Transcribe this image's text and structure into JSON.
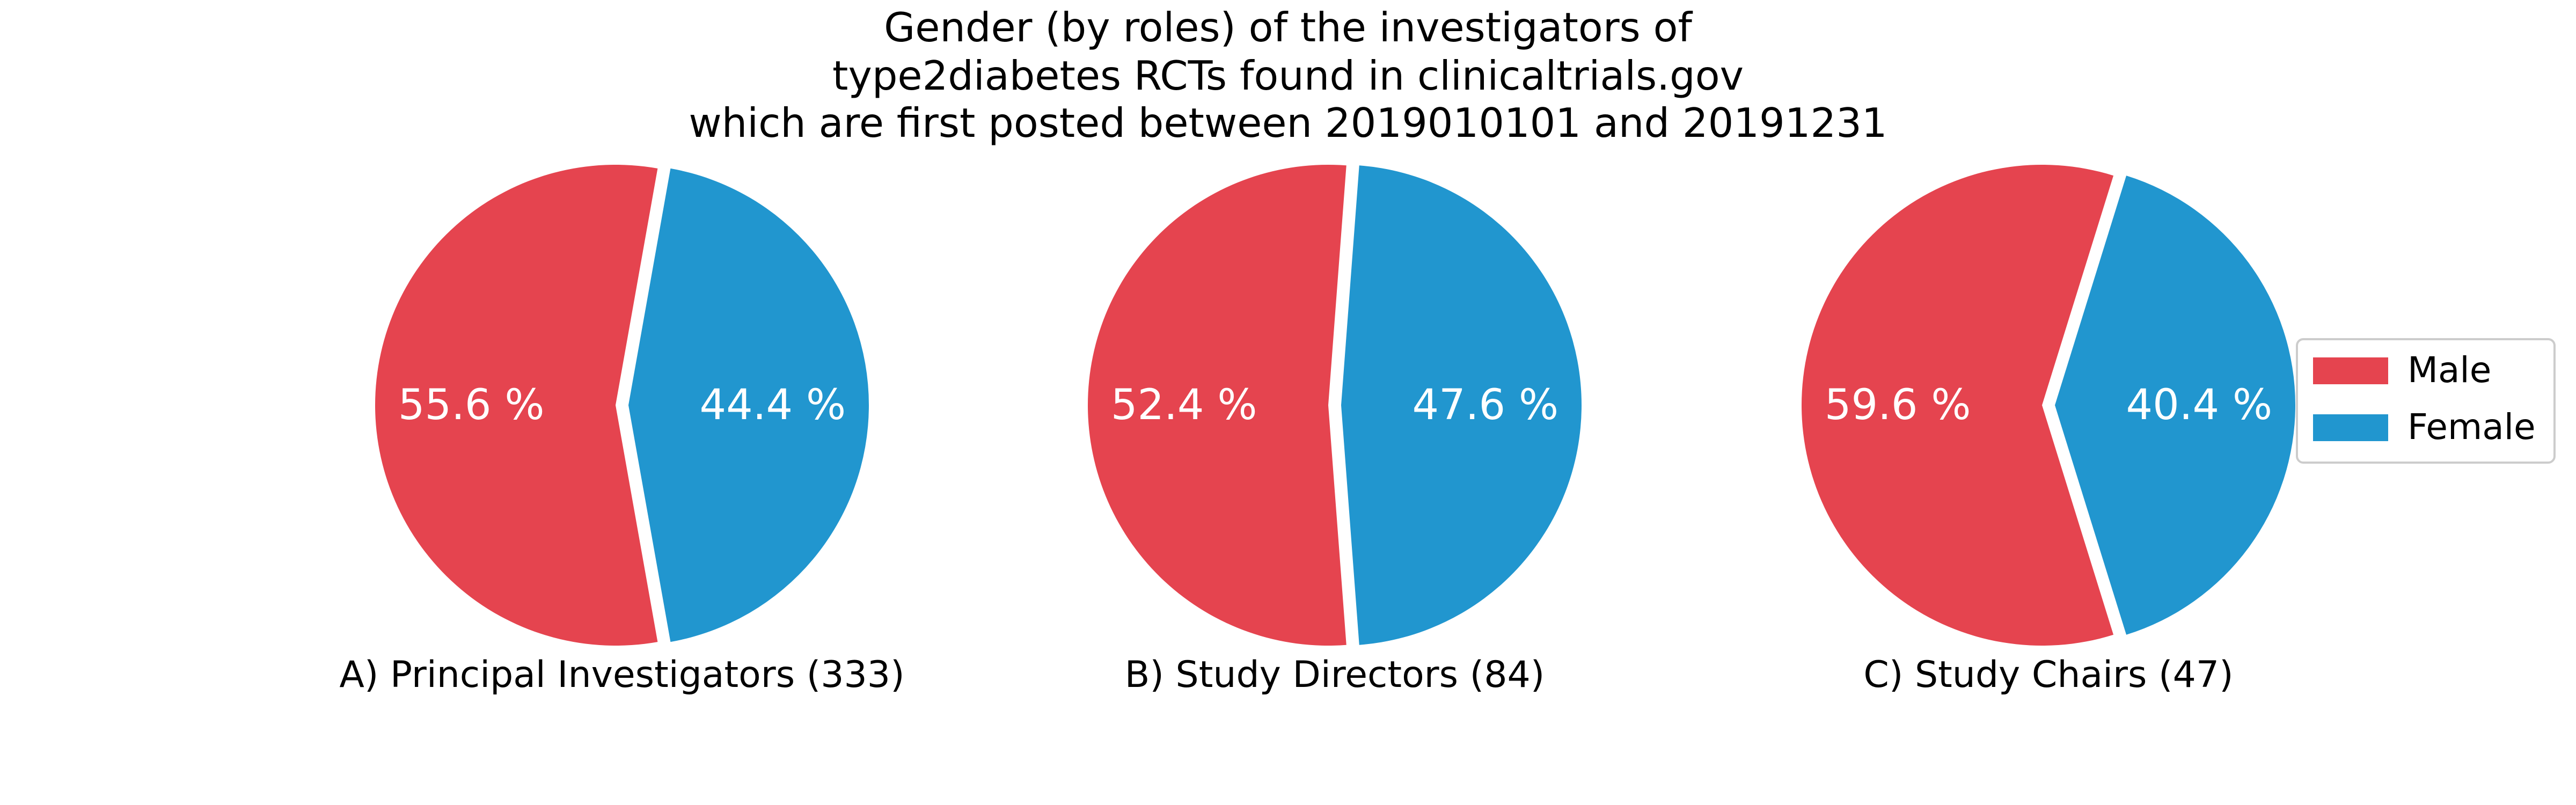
{
  "chart_data": {
    "type": "pie",
    "title": [
      "Gender (by roles) of the investigators of",
      "type2diabetes RCTs found in clinicaltrials.gov",
      "which are first posted between 2019010101 and 20191231"
    ],
    "legend": {
      "placement": "right",
      "entries": [
        {
          "label": "Male",
          "color": "#e5444f"
        },
        {
          "label": "Female",
          "color": "#2196cf"
        }
      ]
    },
    "charts": [
      {
        "label": "A) Principal Investigators (333)",
        "slices": [
          {
            "category": "Male",
            "value": 55.6,
            "label": "55.6 %"
          },
          {
            "category": "Female",
            "value": 44.4,
            "label": "44.4 %"
          }
        ]
      },
      {
        "label": "B) Study Directors (84)",
        "slices": [
          {
            "category": "Male",
            "value": 52.4,
            "label": "52.4 %"
          },
          {
            "category": "Female",
            "value": 47.6,
            "label": "47.6 %"
          }
        ]
      },
      {
        "label": "C) Study Chairs (47)",
        "slices": [
          {
            "category": "Male",
            "value": 59.6,
            "label": "59.6 %"
          },
          {
            "category": "Female",
            "value": 40.4,
            "label": "40.4 %"
          }
        ]
      }
    ]
  }
}
